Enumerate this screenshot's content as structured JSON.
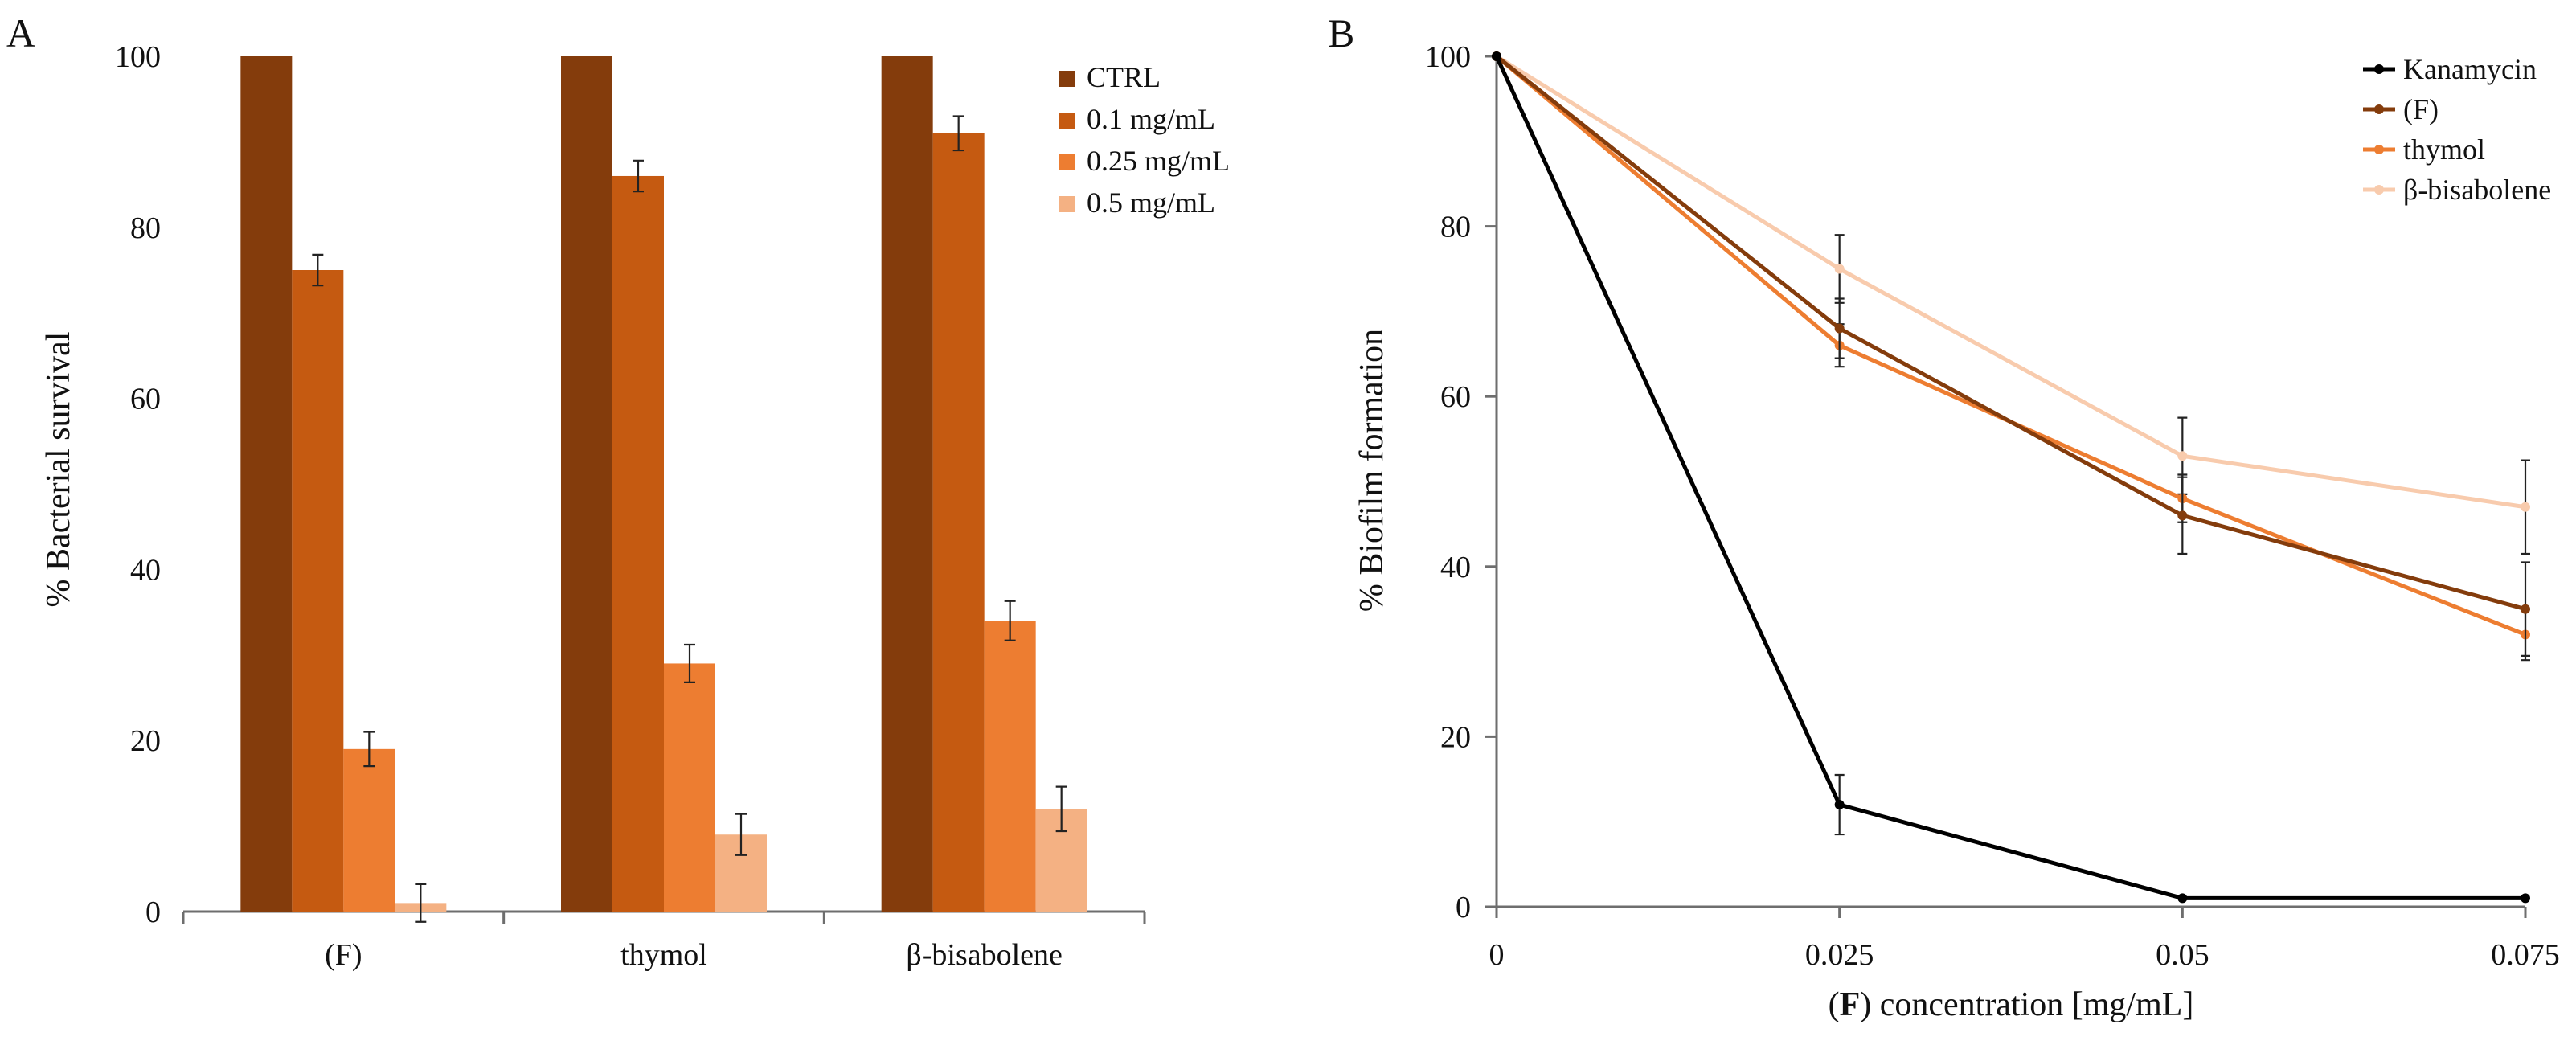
{
  "colors": {
    "ctrl": "#843c0c",
    "c01": "#c55a11",
    "c025": "#ed7d31",
    "c05": "#f4b183",
    "kanamycin": "#000000",
    "f": "#843c0c",
    "thymol": "#ed7d31",
    "bisabolene": "#f8cbad"
  },
  "chart_data": [
    {
      "panel": "A",
      "type": "bar",
      "title": "",
      "xlabel": "",
      "ylabel": "% Bacterial survival",
      "ylim": [
        0,
        100
      ],
      "yticks": [
        "0",
        "20",
        "40",
        "60",
        "80",
        "100"
      ],
      "categories": [
        "(F)",
        "thymol",
        "β-bisabolene"
      ],
      "legend_position": "top-right",
      "series": [
        {
          "name": "CTRL",
          "color_key": "ctrl",
          "values": [
            100,
            100,
            100
          ],
          "errors": [
            0,
            0,
            0
          ]
        },
        {
          "name": "0.1 mg/mL",
          "color_key": "c01",
          "values": [
            75,
            86,
            91
          ],
          "errors": [
            1.8,
            1.8,
            2
          ]
        },
        {
          "name": "0.25 mg/mL",
          "color_key": "c025",
          "values": [
            19,
            29,
            34
          ],
          "errors": [
            2,
            2.2,
            2.3
          ]
        },
        {
          "name": "0.5 mg/mL",
          "color_key": "c05",
          "values": [
            1,
            9,
            12
          ],
          "errors": [
            2.2,
            2.4,
            2.6
          ]
        }
      ]
    },
    {
      "panel": "B",
      "type": "line",
      "title": "",
      "xlabel_bold": "F",
      "xlabel_open": "(",
      "xlabel_close": ")",
      "xlabel_rest": " concentration [mg/mL]",
      "ylabel": "% Biofilm formation",
      "ylim": [
        0,
        100
      ],
      "yticks": [
        "0",
        "20",
        "40",
        "60",
        "80",
        "100"
      ],
      "x": [
        0,
        0.025,
        0.05,
        0.075
      ],
      "xticks": [
        "0",
        "0.025",
        "0.05",
        "0.075"
      ],
      "legend_position": "top-right",
      "series": [
        {
          "name": "Kanamycin",
          "color_key": "kanamycin",
          "values": [
            100,
            12,
            1,
            1
          ],
          "errors": [
            0,
            3.5,
            0,
            0
          ]
        },
        {
          "name": "(F)",
          "color_key": "f",
          "values": [
            100,
            68,
            46,
            35
          ],
          "errors": [
            0,
            3.5,
            4.5,
            5.5
          ]
        },
        {
          "name": "thymol",
          "color_key": "thymol",
          "values": [
            100,
            66,
            48,
            32
          ],
          "errors": [
            0,
            2.5,
            2.8,
            3
          ]
        },
        {
          "name": "β-bisabolene",
          "color_key": "bisabolene",
          "values": [
            100,
            75,
            53,
            47
          ],
          "errors": [
            0,
            4,
            4.5,
            5.5
          ]
        }
      ]
    }
  ]
}
